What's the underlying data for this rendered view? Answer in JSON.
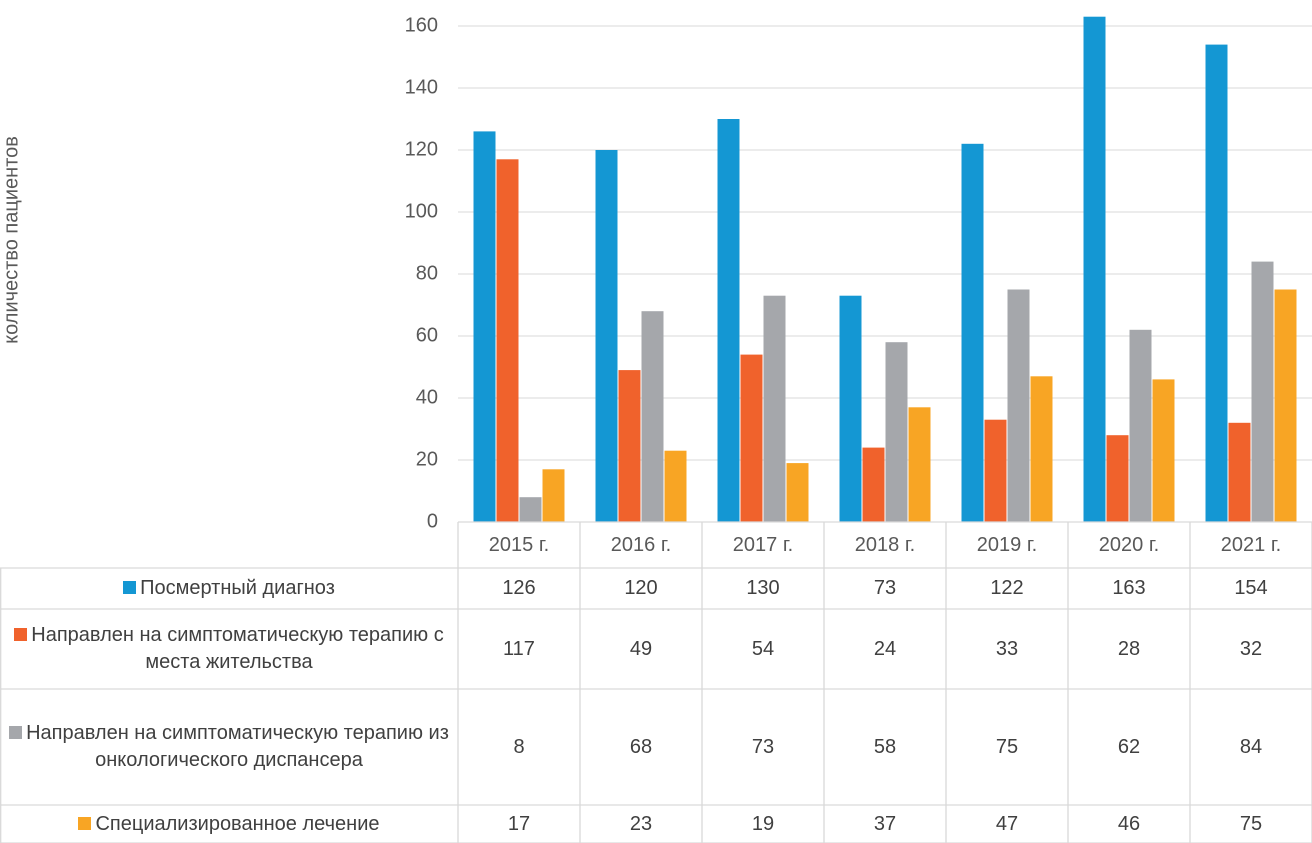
{
  "chart_data": {
    "type": "bar",
    "y_label": "количество пациентов",
    "categories": [
      "2015 г.",
      "2016 г.",
      "2017 г.",
      "2018 г.",
      "2019 г.",
      "2020 г.",
      "2021 г."
    ],
    "series": [
      {
        "name": "Посмертный диагноз",
        "color": "#1497d3",
        "values": [
          126,
          120,
          130,
          73,
          122,
          163,
          154
        ]
      },
      {
        "name": "Направлен на симптоматическую терапию с места жительства",
        "color": "#f0622c",
        "values": [
          117,
          49,
          54,
          24,
          33,
          28,
          32
        ]
      },
      {
        "name": "Направлен на симптоматическую терапию из онкологического диспансера",
        "color": "#a5a7ab",
        "values": [
          8,
          68,
          73,
          58,
          75,
          62,
          84
        ]
      },
      {
        "name": "Специализированное лечение",
        "color": "#f8a524",
        "values": [
          17,
          23,
          19,
          37,
          47,
          46,
          75
        ]
      }
    ],
    "ylim": [
      0,
      160
    ],
    "yticks": [
      0,
      20,
      40,
      60,
      80,
      100,
      120,
      140,
      160
    ],
    "grid": true
  }
}
